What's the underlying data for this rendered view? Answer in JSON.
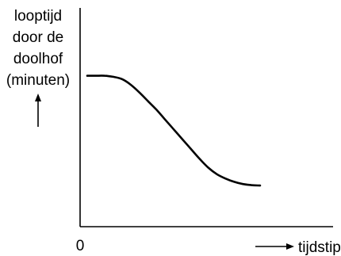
{
  "chart_data": {
    "type": "line",
    "ylabel": [
      "looptijd",
      "door de",
      "doolhof",
      "(minuten)"
    ],
    "xlabel": "tijdstip",
    "x_origin_label": "0",
    "ticks_shown": false,
    "grid": false,
    "legend": "none",
    "x_range": [
      0,
      10
    ],
    "y_range": [
      0,
      10
    ],
    "series": [
      {
        "x": [
          0,
          0.5,
          1,
          1.5,
          2,
          2.5,
          3,
          3.5,
          4,
          4.5,
          5,
          5.5,
          6,
          6.5,
          7,
          7.5,
          8,
          8.5,
          9,
          9.5,
          10
        ],
        "y": [
          6.9,
          6.9,
          6.9,
          6.85,
          6.75,
          6.5,
          6.15,
          5.75,
          5.35,
          4.9,
          4.45,
          4.0,
          3.55,
          3.1,
          2.7,
          2.4,
          2.2,
          2.05,
          1.95,
          1.9,
          1.88
        ],
        "color": "#000000"
      }
    ]
  }
}
